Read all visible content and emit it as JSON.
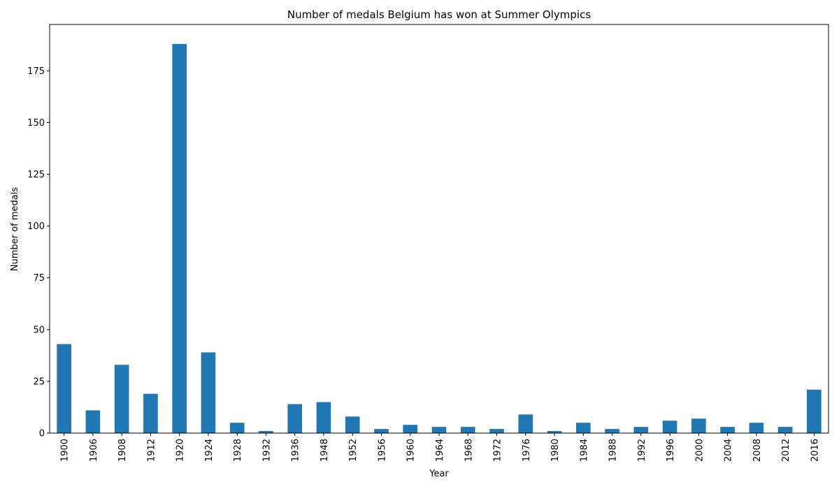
{
  "chart_data": {
    "type": "bar",
    "title": "Number of medals Belgium has won at Summer Olympics",
    "xlabel": "Year",
    "ylabel": "Number of medals",
    "categories": [
      "1900",
      "1906",
      "1908",
      "1912",
      "1920",
      "1924",
      "1928",
      "1932",
      "1936",
      "1948",
      "1952",
      "1956",
      "1960",
      "1964",
      "1968",
      "1972",
      "1976",
      "1980",
      "1984",
      "1988",
      "1992",
      "1996",
      "2000",
      "2004",
      "2008",
      "2012",
      "2016"
    ],
    "values": [
      43,
      11,
      33,
      19,
      188,
      39,
      5,
      1,
      14,
      15,
      8,
      2,
      4,
      3,
      3,
      2,
      9,
      1,
      5,
      2,
      3,
      6,
      7,
      3,
      5,
      3,
      21
    ],
    "ylim": [
      0,
      197.4
    ],
    "yticks": [
      0,
      25,
      50,
      75,
      100,
      125,
      150,
      175
    ],
    "grid": false,
    "legend": false,
    "colors": {
      "bar": "#1f77b4",
      "axis": "#000000",
      "background": "#ffffff"
    }
  }
}
